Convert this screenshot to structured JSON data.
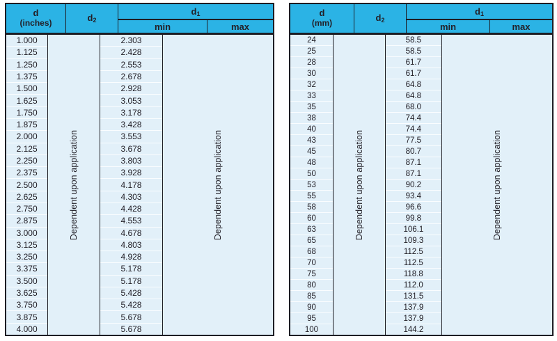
{
  "colors": {
    "header_cyan": "#2bb3e5",
    "body_background": "#e2f0f9",
    "border_dark": "#1d1d24",
    "row_separator": "#fafdff",
    "text": "#232028"
  },
  "tables": [
    {
      "name": "inches",
      "header": {
        "d_line1": "d",
        "d_line2": "(inches)",
        "d2_base": "d",
        "d2_sub": "2",
        "d1_base": "d",
        "d1_sub": "1",
        "min_label": "min",
        "max_label": "max"
      },
      "d2_text": "Dependent upon application",
      "max_text": "Dependent upon application",
      "rows": [
        {
          "d": "1.000",
          "min": "2.303"
        },
        {
          "d": "1.125",
          "min": "2.428"
        },
        {
          "d": "1.250",
          "min": "2.553"
        },
        {
          "d": "1.375",
          "min": "2.678"
        },
        {
          "d": "1.500",
          "min": "2.928"
        },
        {
          "d": "1.625",
          "min": "3.053"
        },
        {
          "d": "1.750",
          "min": "3.178"
        },
        {
          "d": "1.875",
          "min": "3.428"
        },
        {
          "d": "2.000",
          "min": "3.553"
        },
        {
          "d": "2.125",
          "min": "3.678"
        },
        {
          "d": "2.250",
          "min": "3.803"
        },
        {
          "d": "2.375",
          "min": "3.928"
        },
        {
          "d": "2.500",
          "min": "4.178"
        },
        {
          "d": "2.625",
          "min": "4.303"
        },
        {
          "d": "2.750",
          "min": "4.428"
        },
        {
          "d": "2.875",
          "min": "4.553"
        },
        {
          "d": "3.000",
          "min": "4.678"
        },
        {
          "d": "3.125",
          "min": "4.803"
        },
        {
          "d": "3.250",
          "min": "4.928"
        },
        {
          "d": "3.375",
          "min": "5.178"
        },
        {
          "d": "3.500",
          "min": "5.178"
        },
        {
          "d": "3.625",
          "min": "5.428"
        },
        {
          "d": "3.750",
          "min": "5.428"
        },
        {
          "d": "3.875",
          "min": "5.678"
        },
        {
          "d": "4.000",
          "min": "5.678"
        }
      ]
    },
    {
      "name": "mm",
      "header": {
        "d_line1": "d",
        "d_line2": "(mm)",
        "d2_base": "d",
        "d2_sub": "2",
        "d1_base": "d",
        "d1_sub": "1",
        "min_label": "min",
        "max_label": "max"
      },
      "d2_text": "Dependent upon application",
      "max_text": "Dependent upon application",
      "rows": [
        {
          "d": "24",
          "min": "58.5"
        },
        {
          "d": "25",
          "min": "58.5"
        },
        {
          "d": "28",
          "min": "61.7"
        },
        {
          "d": "30",
          "min": "61.7"
        },
        {
          "d": "32",
          "min": "64.8"
        },
        {
          "d": "33",
          "min": "64.8"
        },
        {
          "d": "35",
          "min": "68.0"
        },
        {
          "d": "38",
          "min": "74.4"
        },
        {
          "d": "40",
          "min": "74.4"
        },
        {
          "d": "43",
          "min": "77.5"
        },
        {
          "d": "45",
          "min": "80.7"
        },
        {
          "d": "48",
          "min": "87.1"
        },
        {
          "d": "50",
          "min": "87.1"
        },
        {
          "d": "53",
          "min": "90.2"
        },
        {
          "d": "55",
          "min": "93.4"
        },
        {
          "d": "58",
          "min": "96.6"
        },
        {
          "d": "60",
          "min": "99.8"
        },
        {
          "d": "63",
          "min": "106.1"
        },
        {
          "d": "65",
          "min": "109.3"
        },
        {
          "d": "68",
          "min": "112.5"
        },
        {
          "d": "70",
          "min": "112.5"
        },
        {
          "d": "75",
          "min": "118.8"
        },
        {
          "d": "80",
          "min": "112.0"
        },
        {
          "d": "85",
          "min": "131.5"
        },
        {
          "d": "90",
          "min": "137.9"
        },
        {
          "d": "95",
          "min": "137.9"
        },
        {
          "d": "100",
          "min": "144.2"
        }
      ]
    }
  ]
}
